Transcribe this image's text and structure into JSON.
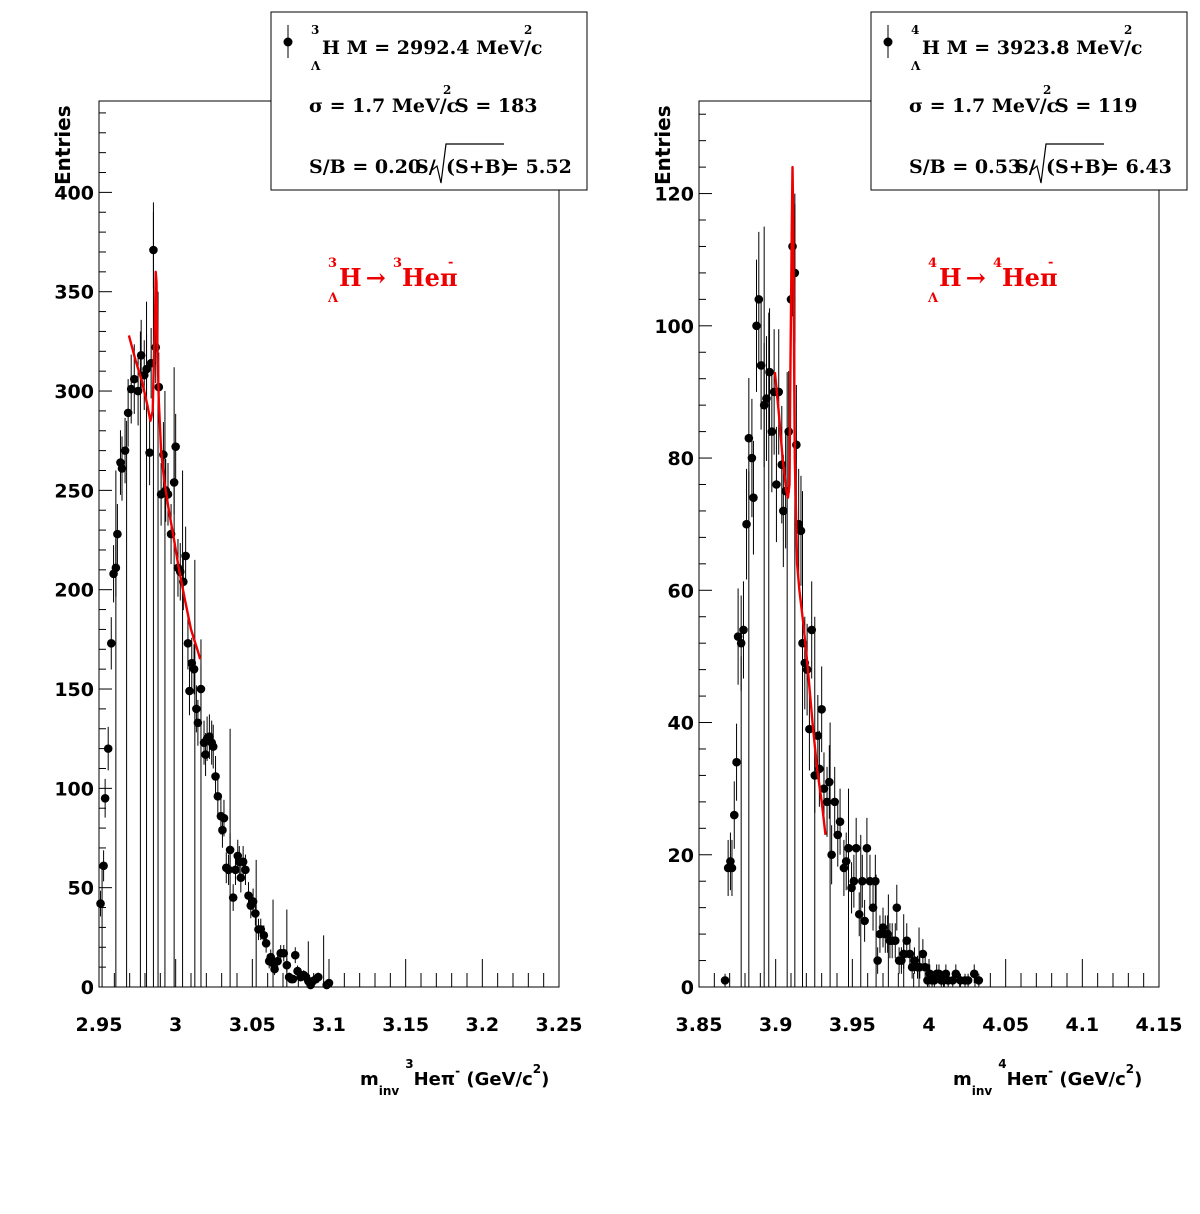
{
  "colors": {
    "data": "#000000",
    "fit": "#ee0000",
    "label": "#ee0000"
  },
  "chart_data": [
    {
      "type": "scatter",
      "ylabel": "Entries",
      "xlabel": {
        "m": "m",
        "sub": "inv",
        "iso": "3",
        "body": "Heπ",
        "sup": "-",
        "unit_pre": " (GeV/c",
        "unit_sup": "2",
        "unit_post": ")"
      },
      "xlim": [
        2.95,
        3.25
      ],
      "ylim": [
        0,
        446
      ],
      "xticks": [
        2.95,
        3.0,
        3.05,
        3.1,
        3.15,
        3.2,
        3.25
      ],
      "xtick_labels": [
        "2.95",
        "3",
        "3.05",
        "3.1",
        "3.15",
        "3.2",
        "3.25"
      ],
      "yticks": [
        0,
        50,
        100,
        150,
        200,
        250,
        300,
        350,
        400
      ],
      "ytick_labels": [
        "0",
        "50",
        "100",
        "150",
        "200",
        "250",
        "300",
        "350",
        "400"
      ],
      "legend": {
        "position": "top-right",
        "iso": "3",
        "sub": "Λ",
        "mass": "H M = 2992.4 MeV/c",
        "mass_sup": "2",
        "sigma": "σ = 1.7 MeV/c",
        "sigma_sup": "2",
        "signal": "S =  183",
        "ratio": "S/B = 0.20",
        "signif_pre": "S/",
        "signif_rad": "(S+B)",
        "signif_post": " = 5.52"
      },
      "annotation": {
        "iso1": "3",
        "sub": "Λ",
        "h": "H",
        "arrow": "→",
        "iso2": "3",
        "prod": "Heπ",
        "sup": "-"
      },
      "points": [
        [
          2.951,
          42
        ],
        [
          2.953,
          61
        ],
        [
          2.954,
          95
        ],
        [
          2.956,
          120
        ],
        [
          2.958,
          173
        ],
        [
          2.9595,
          208
        ],
        [
          2.961,
          211
        ],
        [
          2.962,
          228
        ],
        [
          2.964,
          264
        ],
        [
          2.965,
          261
        ],
        [
          2.967,
          270
        ],
        [
          2.969,
          289
        ],
        [
          2.971,
          301
        ],
        [
          2.973,
          306
        ],
        [
          2.9755,
          300
        ],
        [
          2.9775,
          318
        ],
        [
          2.9795,
          308
        ],
        [
          2.981,
          311
        ],
        [
          2.983,
          269
        ],
        [
          2.984,
          314
        ],
        [
          2.9855,
          371
        ],
        [
          2.987,
          322
        ],
        [
          2.989,
          302
        ],
        [
          2.9905,
          248
        ],
        [
          2.992,
          268
        ],
        [
          2.9935,
          250
        ],
        [
          2.995,
          248
        ],
        [
          2.997,
          228
        ],
        [
          2.999,
          254
        ],
        [
          3.0,
          272
        ],
        [
          3.0015,
          211
        ],
        [
          3.003,
          209
        ],
        [
          3.005,
          204
        ],
        [
          3.0065,
          217
        ],
        [
          3.008,
          173
        ],
        [
          3.009,
          149
        ],
        [
          3.0105,
          163
        ],
        [
          3.012,
          160
        ],
        [
          3.0135,
          140
        ],
        [
          3.0145,
          133
        ],
        [
          3.0165,
          150
        ],
        [
          3.0185,
          123
        ],
        [
          3.0195,
          117
        ],
        [
          3.0205,
          125
        ],
        [
          3.022,
          126
        ],
        [
          3.0235,
          123
        ],
        [
          3.0245,
          121
        ],
        [
          3.026,
          106
        ],
        [
          3.0275,
          96
        ],
        [
          3.0295,
          86
        ],
        [
          3.0305,
          79
        ],
        [
          3.0315,
          85
        ],
        [
          3.033,
          60
        ],
        [
          3.0345,
          59
        ],
        [
          3.0355,
          69
        ],
        [
          3.0375,
          45
        ],
        [
          3.039,
          59
        ],
        [
          3.0405,
          66
        ],
        [
          3.0415,
          63
        ],
        [
          3.0425,
          55
        ],
        [
          3.044,
          63
        ],
        [
          3.0455,
          59
        ],
        [
          3.0475,
          46
        ],
        [
          3.049,
          41
        ],
        [
          3.0505,
          43
        ],
        [
          3.052,
          37
        ],
        [
          3.054,
          29
        ],
        [
          3.0555,
          29
        ],
        [
          3.0575,
          26
        ],
        [
          3.059,
          22
        ],
        [
          3.061,
          13
        ],
        [
          3.062,
          15
        ],
        [
          3.0635,
          12
        ],
        [
          3.0645,
          9
        ],
        [
          3.0665,
          13
        ],
        [
          3.0685,
          17
        ],
        [
          3.0705,
          17
        ],
        [
          3.0725,
          11
        ],
        [
          3.074,
          5
        ],
        [
          3.0755,
          4
        ],
        [
          3.0765,
          4
        ],
        [
          3.078,
          16
        ],
        [
          3.0795,
          8
        ],
        [
          3.0815,
          5
        ],
        [
          3.0835,
          6
        ],
        [
          3.085,
          5
        ],
        [
          3.0865,
          3
        ],
        [
          3.088,
          1
        ],
        [
          3.0895,
          3
        ],
        [
          3.0915,
          4
        ],
        [
          3.093,
          5
        ],
        [
          3.0985,
          1
        ],
        [
          3.1,
          2
        ]
      ],
      "errors": [
        [
          2.952,
          60
        ],
        [
          2.961,
          260
        ],
        [
          2.968,
          285
        ],
        [
          2.977,
          330
        ],
        [
          2.981,
          345
        ],
        [
          2.9855,
          395
        ],
        [
          2.9885,
          350
        ],
        [
          2.993,
          300
        ],
        [
          2.999,
          312
        ],
        [
          3.0045,
          260
        ],
        [
          3.0125,
          215
        ],
        [
          3.0165,
          175
        ],
        [
          3.0355,
          130
        ],
        [
          3.0525,
          64
        ],
        [
          3.0635,
          44
        ],
        [
          3.0725,
          39
        ],
        [
          3.0865,
          23
        ],
        [
          3.0965,
          26
        ]
      ],
      "fit": [
        [
          2.9695,
          328
        ],
        [
          2.974,
          315
        ],
        [
          2.978,
          305
        ],
        [
          2.9815,
          293
        ],
        [
          2.9835,
          285
        ],
        [
          2.985,
          290
        ],
        [
          2.9855,
          305
        ],
        [
          2.9865,
          335
        ],
        [
          2.987,
          360
        ],
        [
          2.9875,
          355
        ],
        [
          2.988,
          325
        ],
        [
          2.989,
          295
        ],
        [
          2.9905,
          270
        ],
        [
          2.9925,
          255
        ],
        [
          2.9955,
          240
        ],
        [
          2.999,
          225
        ],
        [
          3.002,
          211
        ],
        [
          3.006,
          195
        ],
        [
          3.01,
          180
        ],
        [
          3.0145,
          169
        ],
        [
          3.016,
          165
        ]
      ]
    },
    {
      "type": "scatter",
      "ylabel": "Entries",
      "xlabel": {
        "m": "m",
        "sub": "inv",
        "iso": "4",
        "body": "Heπ",
        "sup": "-",
        "unit_pre": " (GeV/c",
        "unit_sup": "2",
        "unit_post": ")"
      },
      "xlim": [
        3.85,
        4.15
      ],
      "ylim": [
        0,
        134
      ],
      "xticks": [
        3.85,
        3.9,
        3.95,
        4.0,
        4.05,
        4.1,
        4.15
      ],
      "xtick_labels": [
        "3.85",
        "3.9",
        "3.95",
        "4",
        "4.05",
        "4.1",
        "4.15"
      ],
      "yticks": [
        0,
        20,
        40,
        60,
        80,
        100,
        120
      ],
      "ytick_labels": [
        "0",
        "20",
        "40",
        "60",
        "80",
        "100",
        "120"
      ],
      "legend": {
        "position": "top-right",
        "iso": "4",
        "sub": "Λ",
        "mass": "H M = 3923.8 MeV/c",
        "mass_sup": "2",
        "sigma": "σ = 1.7 MeV/c",
        "sigma_sup": "2",
        "signal": "S =  119",
        "ratio": "S/B = 0.53",
        "signif_pre": "S/",
        "signif_rad": "(S+B)",
        "signif_post": " = 6.43"
      },
      "annotation": {
        "iso1": "4",
        "sub": "Λ",
        "h": "H",
        "arrow": "→",
        "iso2": "4",
        "prod": "Heπ",
        "sup": "-"
      },
      "points": [
        [
          3.867,
          1
        ],
        [
          3.869,
          18
        ],
        [
          3.8705,
          19
        ],
        [
          3.8715,
          18
        ],
        [
          3.873,
          26
        ],
        [
          3.8745,
          34
        ],
        [
          3.8755,
          53
        ],
        [
          3.8775,
          52
        ],
        [
          3.879,
          54
        ],
        [
          3.881,
          70
        ],
        [
          3.8825,
          83
        ],
        [
          3.8845,
          80
        ],
        [
          3.8855,
          74
        ],
        [
          3.8875,
          100
        ],
        [
          3.889,
          104
        ],
        [
          3.8905,
          94
        ],
        [
          3.8925,
          88
        ],
        [
          3.894,
          89
        ],
        [
          3.896,
          93
        ],
        [
          3.8975,
          84
        ],
        [
          3.899,
          90
        ],
        [
          3.9005,
          76
        ],
        [
          3.902,
          90
        ],
        [
          3.904,
          79
        ],
        [
          3.905,
          72
        ],
        [
          3.9065,
          75
        ],
        [
          3.9085,
          84
        ],
        [
          3.91,
          104
        ],
        [
          3.911,
          112
        ],
        [
          3.9125,
          108
        ],
        [
          3.9135,
          82
        ],
        [
          3.915,
          70
        ],
        [
          3.9165,
          69
        ],
        [
          3.9175,
          52
        ],
        [
          3.919,
          49
        ],
        [
          3.9205,
          48
        ],
        [
          3.922,
          39
        ],
        [
          3.9235,
          54
        ],
        [
          3.9255,
          32
        ],
        [
          3.9275,
          38
        ],
        [
          3.9285,
          33
        ],
        [
          3.93,
          42
        ],
        [
          3.9315,
          30
        ],
        [
          3.9335,
          28
        ],
        [
          3.935,
          31
        ],
        [
          3.9365,
          20
        ],
        [
          3.9385,
          28
        ],
        [
          3.9405,
          23
        ],
        [
          3.942,
          25
        ],
        [
          3.9445,
          18
        ],
        [
          3.946,
          19
        ],
        [
          3.9475,
          21
        ],
        [
          3.9495,
          15
        ],
        [
          3.951,
          16
        ],
        [
          3.9525,
          21
        ],
        [
          3.9545,
          11
        ],
        [
          3.9565,
          16
        ],
        [
          3.958,
          10
        ],
        [
          3.9595,
          21
        ],
        [
          3.9615,
          16
        ],
        [
          3.9635,
          12
        ],
        [
          3.965,
          16
        ],
        [
          3.9665,
          4
        ],
        [
          3.968,
          8
        ],
        [
          3.97,
          9
        ],
        [
          3.9715,
          8
        ],
        [
          3.973,
          8
        ],
        [
          3.9745,
          7
        ],
        [
          3.976,
          7
        ],
        [
          3.978,
          7
        ],
        [
          3.979,
          12
        ],
        [
          3.9805,
          4
        ],
        [
          3.982,
          4
        ],
        [
          3.9835,
          5
        ],
        [
          3.9855,
          7
        ],
        [
          3.9875,
          5
        ],
        [
          3.989,
          3
        ],
        [
          3.9905,
          4
        ],
        [
          3.9925,
          3
        ],
        [
          3.994,
          3
        ],
        [
          3.996,
          5
        ],
        [
          3.9975,
          3
        ],
        [
          3.999,
          1
        ],
        [
          4.0005,
          2
        ],
        [
          4.002,
          1
        ],
        [
          4.0035,
          1
        ],
        [
          4.005,
          2
        ],
        [
          4.0065,
          2
        ],
        [
          4.008,
          1
        ],
        [
          4.0095,
          1
        ],
        [
          4.011,
          2
        ],
        [
          4.0125,
          1
        ],
        [
          4.0155,
          1
        ],
        [
          4.0175,
          2
        ],
        [
          4.0205,
          1
        ],
        [
          4.0235,
          1
        ],
        [
          4.0255,
          1
        ],
        [
          4.0295,
          2
        ],
        [
          4.0325,
          1
        ]
      ],
      "errors": [
        [
          3.8775,
          50
        ],
        [
          3.8825,
          78
        ],
        [
          3.8925,
          115
        ],
        [
          3.8955,
          102
        ],
        [
          3.9075,
          93
        ],
        [
          3.9125,
          120
        ],
        [
          3.9175,
          75
        ],
        [
          3.9255,
          56
        ],
        [
          3.9355,
          40
        ],
        [
          3.9475,
          30
        ],
        [
          3.9555,
          23
        ],
        [
          3.9655,
          17
        ],
        [
          3.9735,
          14
        ],
        [
          3.9835,
          11
        ],
        [
          3.9935,
          9
        ]
      ],
      "fit": [
        [
          3.8995,
          93
        ],
        [
          3.902,
          87
        ],
        [
          3.9045,
          80
        ],
        [
          3.907,
          75
        ],
        [
          3.908,
          74
        ],
        [
          3.909,
          76
        ],
        [
          3.9095,
          90
        ],
        [
          3.9105,
          115
        ],
        [
          3.911,
          124
        ],
        [
          3.9115,
          116
        ],
        [
          3.912,
          95
        ],
        [
          3.9125,
          80
        ],
        [
          3.914,
          64
        ],
        [
          3.9155,
          60
        ],
        [
          3.918,
          55
        ],
        [
          3.921,
          48
        ],
        [
          3.924,
          40
        ],
        [
          3.927,
          33
        ],
        [
          3.93,
          28
        ],
        [
          3.9325,
          23
        ]
      ]
    }
  ]
}
